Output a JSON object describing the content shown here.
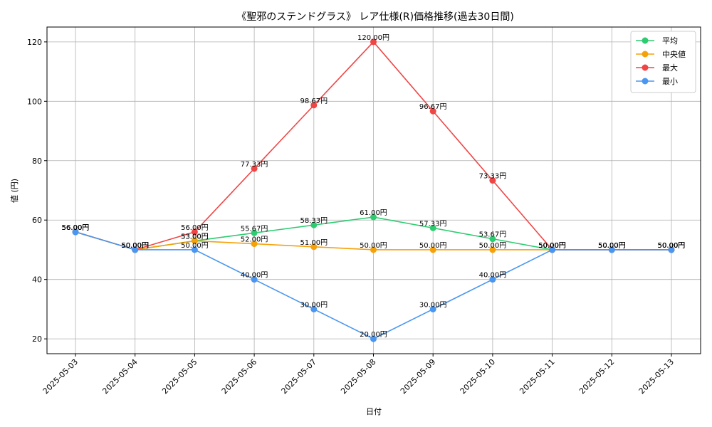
{
  "chart_data": {
    "type": "line",
    "title": "《聖邪のステンドグラス》 レア仕様(R)価格推移(過去30日間)",
    "xlabel": "日付",
    "ylabel": "値 (円)",
    "categories": [
      "2025-05-03",
      "2025-05-04",
      "2025-05-05",
      "2025-05-06",
      "2025-05-07",
      "2025-05-08",
      "2025-05-09",
      "2025-05-10",
      "2025-05-11",
      "2025-05-12",
      "2025-05-13"
    ],
    "ylim": [
      15,
      125
    ],
    "yticks": [
      20,
      40,
      60,
      80,
      100,
      120
    ],
    "grid": true,
    "legend_position": "top-right",
    "value_suffix": "円",
    "series": [
      {
        "name": "平均",
        "color": "#2ecc71",
        "values": [
          56.0,
          50.0,
          53.0,
          55.67,
          58.33,
          61.0,
          57.33,
          53.67,
          50.0,
          50.0,
          50.0
        ]
      },
      {
        "name": "中央値",
        "color": "#f5a10a",
        "values": [
          56.0,
          50.0,
          53.0,
          52.0,
          51.0,
          50.0,
          50.0,
          50.0,
          50.0,
          50.0,
          50.0
        ]
      },
      {
        "name": "最大",
        "color": "#f04545",
        "values": [
          56.0,
          50.0,
          56.0,
          77.33,
          98.67,
          120.0,
          96.67,
          73.33,
          50.0,
          50.0,
          50.0
        ]
      },
      {
        "name": "最小",
        "color": "#4a96f0",
        "values": [
          56.0,
          50.0,
          50.0,
          40.0,
          30.0,
          20.0,
          30.0,
          40.0,
          50.0,
          50.0,
          50.0
        ]
      }
    ]
  }
}
